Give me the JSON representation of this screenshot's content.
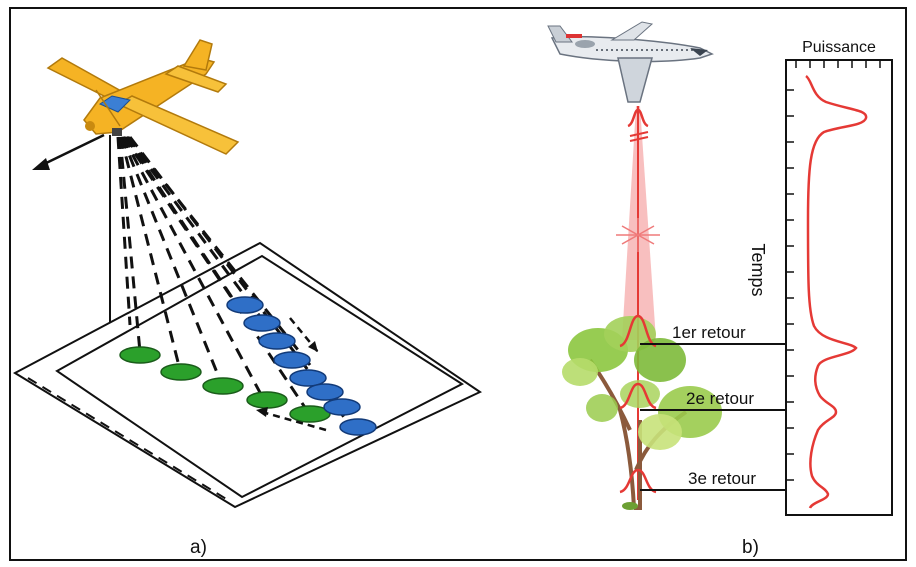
{
  "panel_a": {
    "caption": "a)",
    "colors": {
      "plane": "#f5b324",
      "plane_dark": "#c98a10",
      "footprint_near": "#2ba02b",
      "footprint_far": "#2f6fc7"
    }
  },
  "panel_b": {
    "caption": "b)",
    "power_label": "Puissance",
    "time_label": "Temps",
    "returns": [
      {
        "label": "1er retour"
      },
      {
        "label": "2e retour"
      },
      {
        "label": "3e retour"
      }
    ],
    "colors": {
      "beam": "#e53935",
      "waveform": "#e53935",
      "tree_foliage": "#8cc63f",
      "trunk": "#8b5a3c"
    }
  }
}
